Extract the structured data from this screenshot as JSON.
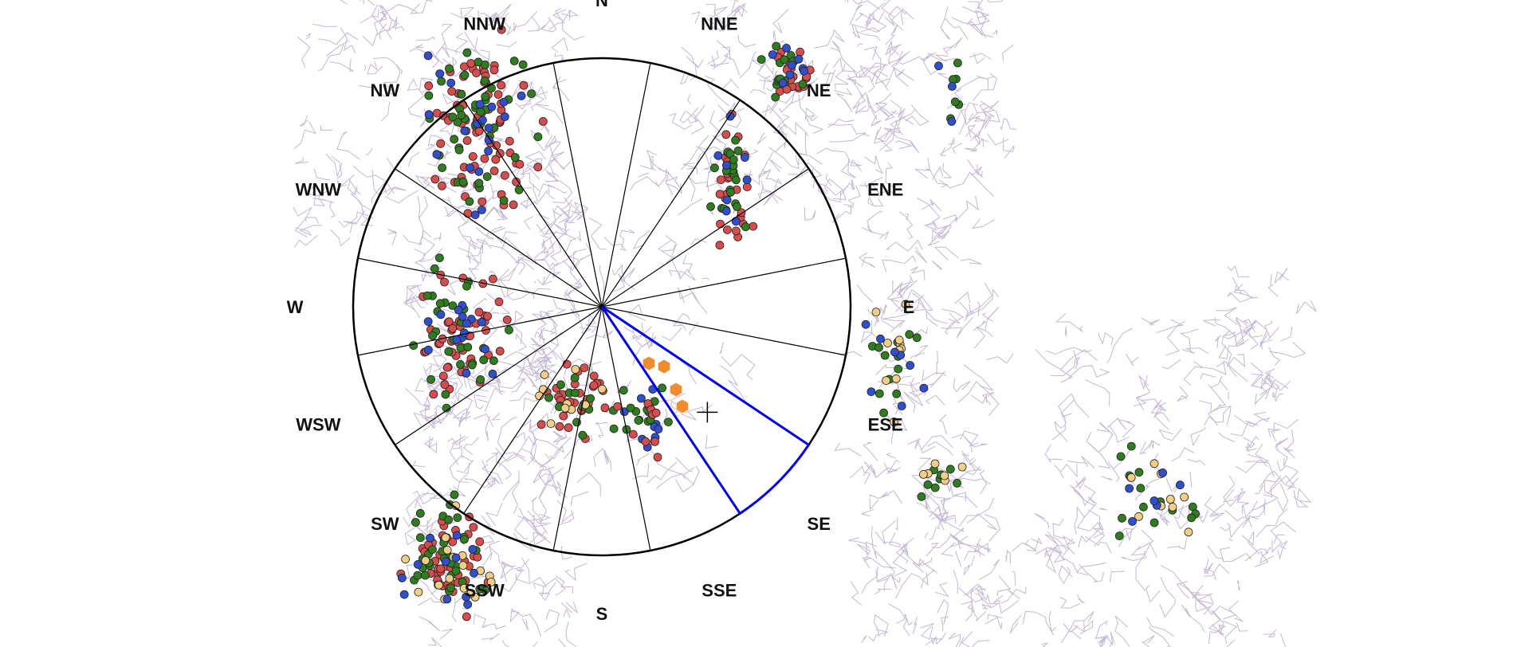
{
  "compass": {
    "labels": [
      "N",
      "NNE",
      "NE",
      "ENE",
      "E",
      "ESE",
      "SE",
      "SSE",
      "S",
      "SSW",
      "SW",
      "WSW",
      "W",
      "WNW",
      "NW",
      "NNW"
    ],
    "sector_count": 16,
    "highlighted_sector": "SE",
    "circle_color": "#000000",
    "highlight_color": "#0000ff",
    "center_marker_icon": "crosshair-icon"
  },
  "legend_colors": {
    "red": "#d94c4c",
    "green": "#2f7d1f",
    "blue": "#2f4fcf",
    "yellow": "#f3cf86",
    "orange": "#f28b2c",
    "roads": "#c4b6d4"
  }
}
